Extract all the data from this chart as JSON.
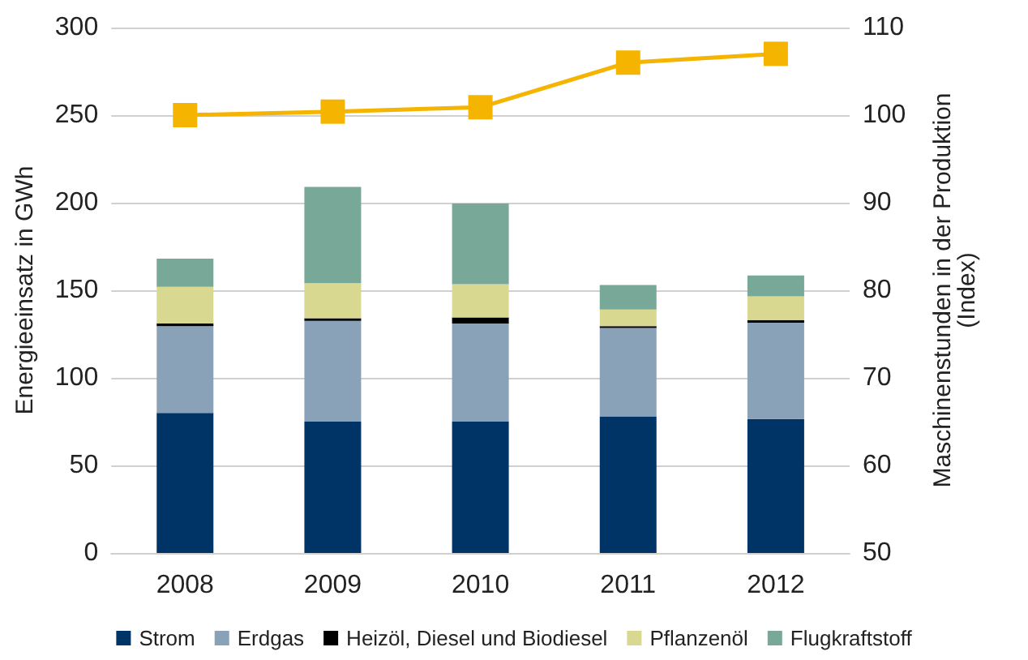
{
  "chart_data": {
    "type": "bar",
    "stacked": true,
    "ylabel": "Energieeinsatz in GWh",
    "y2label": "Maschinenstunden in der Produktion\n(Index)",
    "categories": [
      "2008",
      "2009",
      "2010",
      "2011",
      "2012"
    ],
    "series": [
      {
        "name": "Strom",
        "color": "#003466",
        "values": [
          80,
          75,
          75,
          78,
          76.5
        ]
      },
      {
        "name": "Erdgas",
        "color": "#8aa2b8",
        "values": [
          49.5,
          57.5,
          56,
          50.5,
          55
        ]
      },
      {
        "name": "Heizöl, Diesel und Biodiesel",
        "color": "#000000",
        "values": [
          1.5,
          1.5,
          3.5,
          1,
          1.5
        ]
      },
      {
        "name": "Pflanzenöl",
        "color": "#d8d890",
        "values": [
          21,
          20,
          19,
          9.5,
          13.5
        ]
      },
      {
        "name": "Flugkraftstoff",
        "color": "#78a898",
        "values": [
          16,
          55,
          46,
          14,
          12
        ]
      },
      {
        "type": "line",
        "axis": "y2",
        "color": "#f5b400",
        "values": [
          100,
          100.4,
          100.9,
          106,
          107
        ]
      }
    ],
    "ylim": [
      0,
      300
    ],
    "yticks": [
      0,
      50,
      100,
      150,
      200,
      250,
      300
    ],
    "y2lim": [
      50,
      110
    ],
    "y2ticks": [
      50,
      60,
      70,
      80,
      90,
      100,
      110
    ],
    "grid": "y",
    "legend": "bottom",
    "marker": "square"
  }
}
